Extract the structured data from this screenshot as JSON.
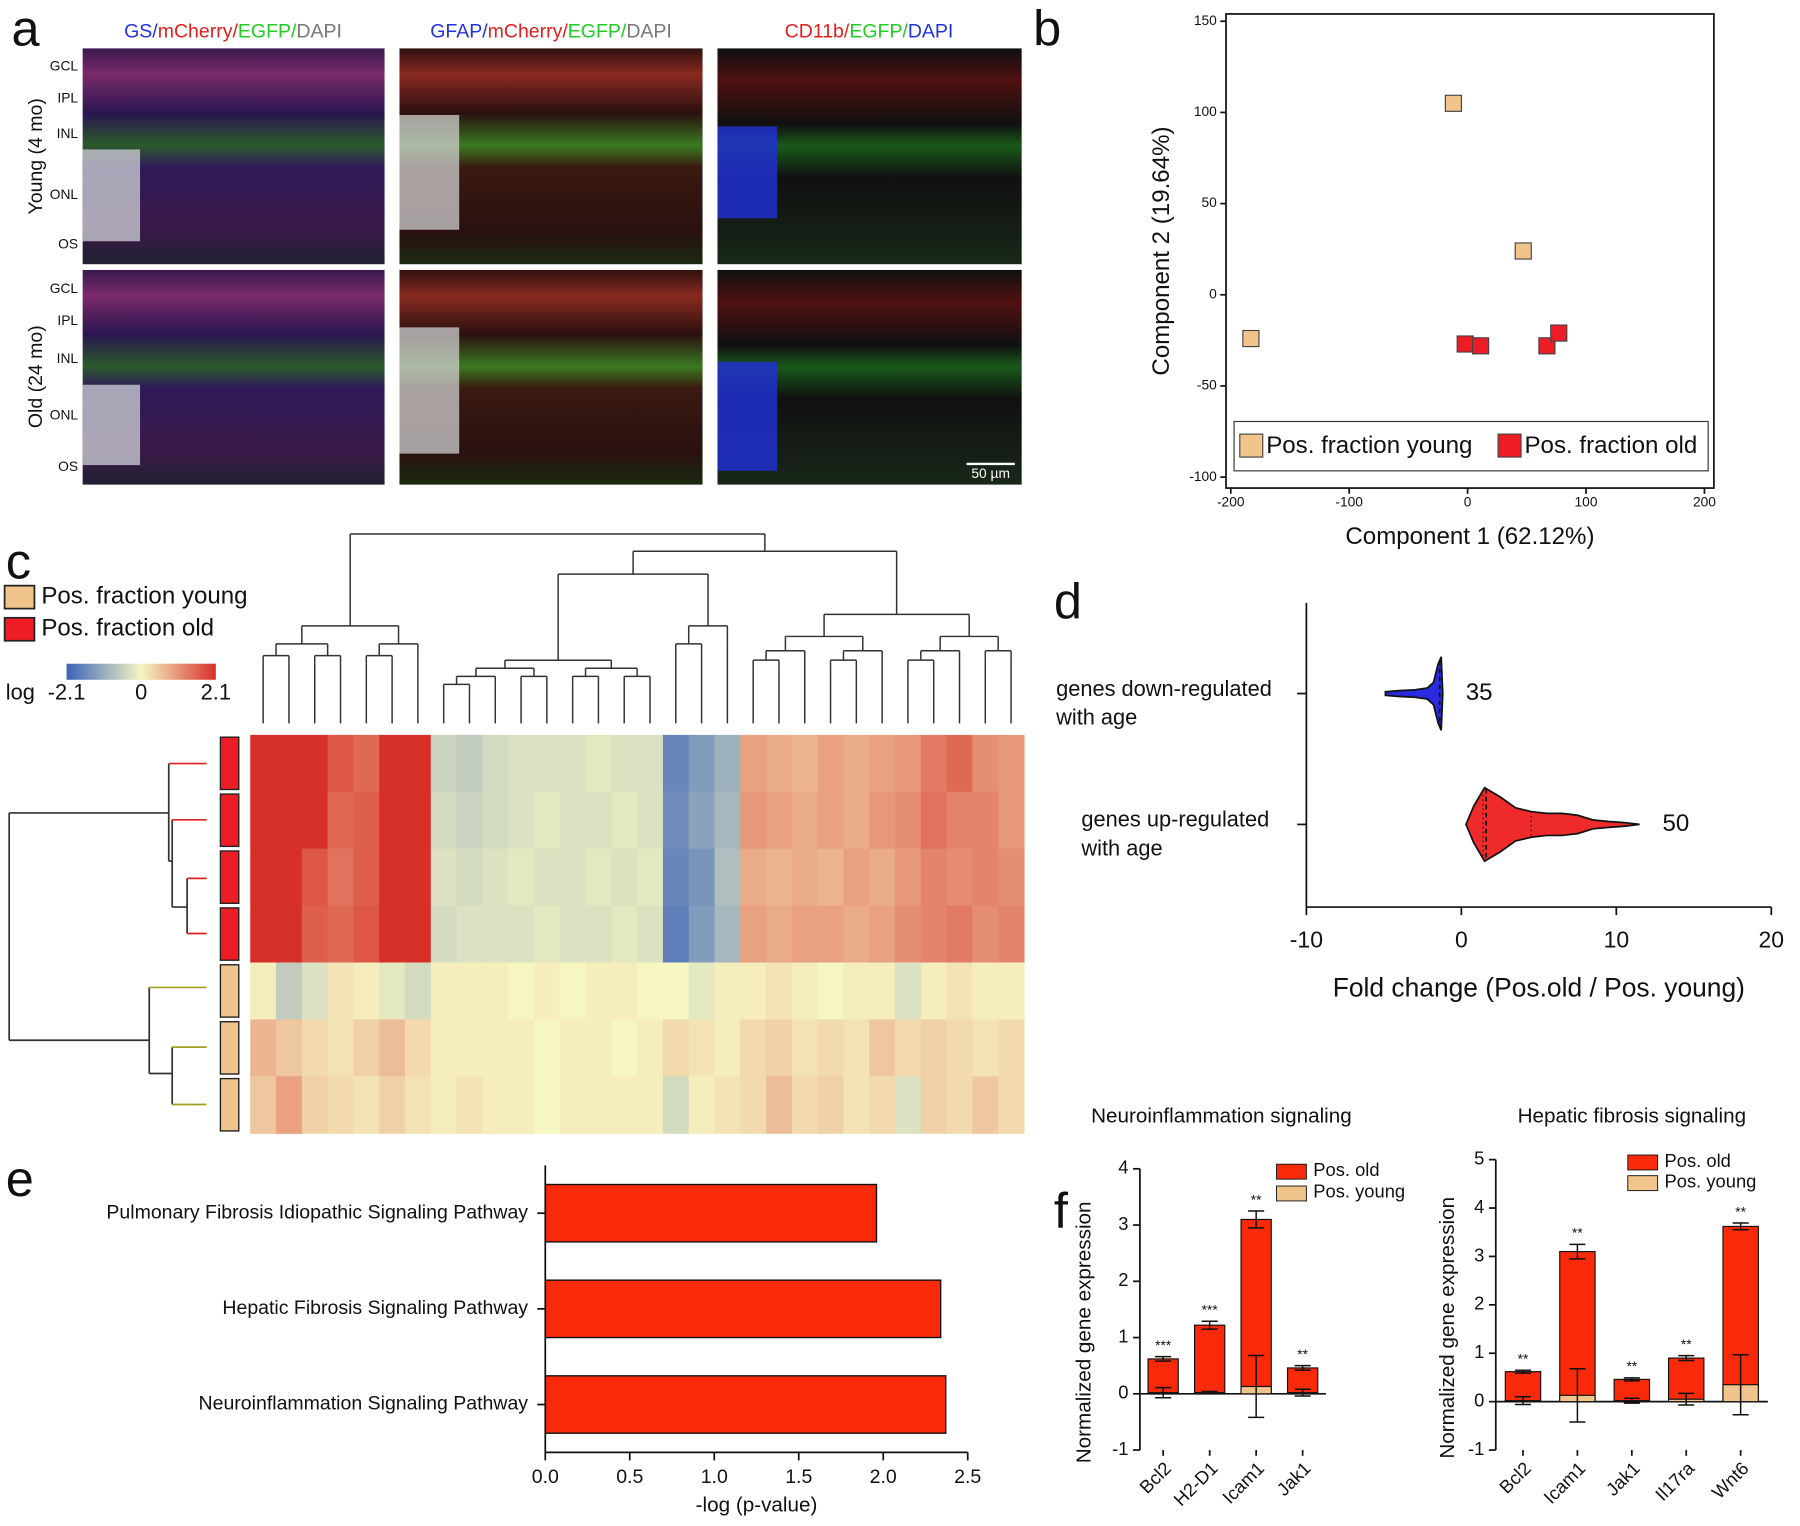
{
  "figure": {
    "panel_labels": [
      "a",
      "b",
      "c",
      "d",
      "e",
      "f"
    ],
    "panel_a": {
      "column_titles": [
        [
          {
            "text": "GS/",
            "color": "#2233dd"
          },
          {
            "text": "mCherry/",
            "color": "#e02020"
          },
          {
            "text": "EGFP/",
            "color": "#22cc22"
          },
          {
            "text": "DAPI",
            "color": "#777777"
          }
        ],
        [
          {
            "text": "GFAP/",
            "color": "#2233dd"
          },
          {
            "text": "mCherry/",
            "color": "#e02020"
          },
          {
            "text": "EGFP/",
            "color": "#22cc22"
          },
          {
            "text": "DAPI",
            "color": "#777777"
          }
        ],
        [
          {
            "text": "CD11b/",
            "color": "#e02020"
          },
          {
            "text": "EGFP/",
            "color": "#22cc22"
          },
          {
            "text": "DAPI",
            "color": "#2233dd"
          }
        ]
      ],
      "row_labels": [
        "Young (4 mo)",
        "Old (24 mo)"
      ],
      "layer_labels": [
        "GCL",
        "IPL",
        "INL",
        "ONL",
        "OS"
      ],
      "scale_bar": "50 µm"
    }
  },
  "chart_data": [
    {
      "type": "scatter",
      "xlabel": "Component 1 (62.12%)",
      "ylabel": "Component 2 (19.64%)",
      "xlim": [
        -204,
        208
      ],
      "ylim": [
        -106,
        154
      ],
      "xticks": [
        -200,
        -100,
        0,
        100,
        200
      ],
      "yticks": [
        -100,
        -50,
        0,
        50,
        100,
        150
      ],
      "legend": "lower left",
      "series": [
        {
          "name": "Pos. fraction young",
          "color": "#f1c48b",
          "x": [
            -183,
            -12,
            47
          ],
          "values": [
            -24,
            105,
            24
          ]
        },
        {
          "name": "Pos. fraction old",
          "color": "#ee1c25",
          "x": [
            -2,
            11,
            67,
            77
          ],
          "values": [
            -27,
            -28,
            -28,
            -21
          ]
        }
      ]
    },
    {
      "type": "heatmap",
      "legend": [
        {
          "name": "Pos. fraction young",
          "color": "#f1c48b"
        },
        {
          "name": "Pos. fraction old",
          "color": "#ee1c25"
        }
      ],
      "colorbar_label": "log",
      "zlim": [
        -2.1,
        2.1
      ],
      "zticks": [
        -2.1,
        0,
        2.1
      ],
      "colorscale": [
        "#3b63b8",
        "#f6f6c2",
        "#d7302a"
      ],
      "row_colors": [
        "#ee1c25",
        "#ee1c25",
        "#ee1c25",
        "#ee1c25",
        "#f1c48b",
        "#f1c48b",
        "#f1c48b"
      ],
      "values": [
        [
          2.1,
          2.1,
          2.1,
          1.7,
          1.5,
          2.1,
          2.1,
          -0.5,
          -0.6,
          -0.4,
          -0.3,
          -0.3,
          -0.3,
          -0.2,
          -0.3,
          -0.3,
          -1.6,
          -1.3,
          -1.0,
          0.9,
          0.8,
          0.7,
          0.9,
          0.8,
          0.9,
          1.0,
          1.3,
          1.5,
          1.1,
          1.0
        ],
        [
          2.1,
          2.1,
          2.1,
          1.5,
          1.6,
          2.1,
          2.1,
          -0.4,
          -0.5,
          -0.4,
          -0.3,
          -0.2,
          -0.3,
          -0.3,
          -0.2,
          -0.3,
          -1.5,
          -1.2,
          -0.9,
          1.0,
          0.9,
          0.8,
          0.9,
          0.8,
          1.0,
          1.1,
          1.4,
          1.2,
          1.2,
          1.0
        ],
        [
          2.1,
          2.1,
          1.7,
          1.4,
          1.6,
          2.1,
          2.1,
          -0.3,
          -0.4,
          -0.3,
          -0.2,
          -0.3,
          -0.3,
          -0.2,
          -0.3,
          -0.2,
          -1.6,
          -1.4,
          -0.8,
          0.8,
          0.7,
          0.8,
          0.7,
          0.9,
          0.8,
          1.0,
          1.2,
          1.1,
          1.2,
          1.1
        ],
        [
          2.1,
          2.1,
          1.6,
          1.5,
          1.7,
          2.1,
          2.1,
          -0.4,
          -0.3,
          -0.3,
          -0.3,
          -0.2,
          -0.3,
          -0.3,
          -0.2,
          -0.3,
          -1.7,
          -1.3,
          -0.9,
          0.9,
          0.8,
          0.9,
          0.9,
          0.8,
          0.9,
          1.1,
          1.2,
          1.3,
          1.1,
          1.2
        ],
        [
          0.1,
          -0.6,
          -0.3,
          0.2,
          0.1,
          -0.2,
          -0.4,
          0.1,
          0.1,
          0.1,
          0.0,
          0.1,
          0.0,
          0.1,
          0.1,
          0.0,
          0.0,
          -0.2,
          0.1,
          0.1,
          0.2,
          0.1,
          0.0,
          0.1,
          0.1,
          -0.3,
          0.1,
          0.2,
          0.1,
          0.1
        ],
        [
          0.7,
          0.5,
          0.3,
          0.2,
          0.4,
          0.6,
          0.3,
          0.1,
          0.1,
          0.1,
          0.1,
          0.0,
          0.1,
          0.1,
          0.0,
          0.1,
          0.3,
          0.2,
          0.1,
          0.3,
          0.4,
          0.2,
          0.3,
          0.2,
          0.5,
          0.3,
          0.4,
          0.3,
          0.2,
          0.3
        ],
        [
          0.5,
          0.9,
          0.4,
          0.3,
          0.2,
          0.4,
          0.2,
          0.1,
          0.2,
          0.1,
          0.1,
          0.0,
          0.1,
          0.1,
          0.1,
          0.1,
          -0.4,
          0.1,
          0.2,
          0.3,
          0.6,
          0.3,
          0.4,
          0.2,
          0.3,
          -0.3,
          0.4,
          0.3,
          0.5,
          0.3
        ]
      ]
    },
    {
      "type": "violin",
      "xlabel": "Fold change (Pos.old / Pos. young)",
      "xlim": [
        -10,
        20
      ],
      "xticks": [
        -10,
        0,
        10,
        20
      ],
      "categories": [
        [
          "genes down-regulated",
          "with age"
        ],
        [
          "genes up-regulated",
          "with age"
        ]
      ],
      "counts": [
        35,
        50
      ],
      "violins": [
        {
          "color": "#2a2ae0",
          "x": [
            -4.9,
            -4,
            -3,
            -2.2,
            -1.8,
            -1.5,
            -1.3,
            -1.2
          ],
          "density": [
            0.05,
            0.08,
            0.1,
            0.15,
            0.3,
            0.8,
            1,
            0
          ],
          "median": -1.4
        },
        {
          "color": "#ee2a2a",
          "x": [
            0.3,
            0.8,
            1.5,
            2.5,
            3.5,
            4.5,
            5.5,
            6.5,
            7.5,
            8.5,
            9.5,
            10.5,
            11.5
          ],
          "density": [
            0,
            0.5,
            1,
            0.75,
            0.45,
            0.35,
            0.3,
            0.3,
            0.25,
            0.12,
            0.08,
            0.05,
            0
          ],
          "median": 1.6,
          "quartiles": [
            1.4,
            4.5
          ]
        }
      ]
    },
    {
      "type": "hbar",
      "xlabel": "-log (p-value)",
      "categories": [
        "Pulmonary Fibrosis Idiopathic Signaling Pathway",
        "Hepatic Fibrosis Signaling Pathway",
        "Neuroinflammation Signaling Pathway"
      ],
      "values": [
        1.96,
        2.34,
        2.37
      ],
      "color": "#f82a0a",
      "xlim": [
        0,
        2.5
      ],
      "xticks": [
        {
          "value": 0,
          "label": "0.0"
        },
        0.5,
        {
          "value": 1,
          "label": "1.0"
        },
        1.5,
        {
          "value": 2,
          "label": "2.0"
        },
        2.5
      ]
    },
    {
      "type": "bar",
      "barmode": "overlay",
      "title": "Neuroinflammation signaling",
      "ylabel": "Normalized gene expression",
      "categories": [
        "Bcl2",
        "H2-D1",
        "Icam1",
        "Jak1"
      ],
      "ylim": [
        -1,
        4
      ],
      "yticks": [
        -1,
        0,
        1,
        2,
        3,
        4
      ],
      "annotations": [
        "***",
        "***",
        "**",
        "**"
      ],
      "series": [
        {
          "name": "Pos. old",
          "color": "#f82a0a",
          "values": [
            0.62,
            1.22,
            3.1,
            0.46
          ],
          "errors": [
            0.04,
            0.07,
            0.15,
            0.04
          ]
        },
        {
          "name": "Pos. young",
          "color": "#f1c48b",
          "values": [
            0.02,
            0.02,
            0.13,
            0.02
          ],
          "errors": [
            0.09,
            0.02,
            0.55,
            0.06
          ]
        }
      ]
    },
    {
      "type": "bar",
      "barmode": "overlay",
      "title": "Hepatic fibrosis signaling",
      "ylabel": "Normalized gene expression",
      "categories": [
        "Bcl2",
        "Icam1",
        "Jak1",
        "Il17ra",
        "Wnt6"
      ],
      "ylim": [
        -1,
        5
      ],
      "yticks": [
        -1,
        0,
        1,
        2,
        3,
        4,
        5
      ],
      "annotations": [
        "**",
        "**",
        "**",
        "**",
        "**"
      ],
      "series": [
        {
          "name": "Pos. old",
          "color": "#f82a0a",
          "values": [
            0.62,
            3.1,
            0.46,
            0.9,
            3.62
          ],
          "errors": [
            0.03,
            0.15,
            0.03,
            0.05,
            0.07
          ]
        },
        {
          "name": "Pos. young",
          "color": "#f1c48b",
          "values": [
            0.02,
            0.13,
            0.02,
            0.05,
            0.35
          ],
          "errors": [
            0.08,
            0.55,
            0.05,
            0.12,
            0.62
          ]
        }
      ]
    }
  ]
}
